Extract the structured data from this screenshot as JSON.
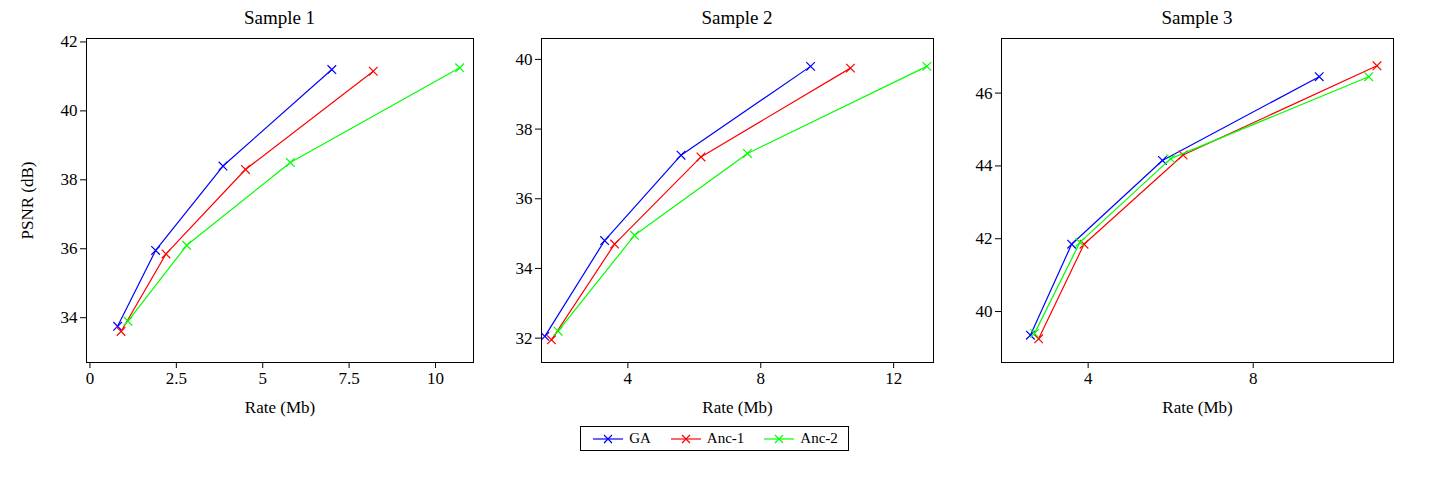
{
  "chart_data": [
    {
      "type": "line",
      "title": "Sample 1",
      "x_label": "Rate (Mb)",
      "y_label": "PSNR (dB)",
      "xlim": [
        -0.1,
        11.1
      ],
      "xticks": [
        0,
        2.5,
        5,
        7.5,
        10
      ],
      "ylim": [
        32.7,
        42.1
      ],
      "yticks": [
        34,
        36,
        38,
        40,
        42
      ],
      "grid": false,
      "legend": "bottom",
      "marker": "x",
      "series": [
        {
          "name": "GA",
          "color": "#0000ff",
          "x": [
            0.8,
            1.9,
            3.85,
            7.0
          ],
          "values": [
            33.75,
            35.95,
            38.4,
            41.2
          ]
        },
        {
          "name": "Anc-1",
          "color": "#ff0000",
          "x": [
            0.9,
            2.2,
            4.5,
            8.2
          ],
          "values": [
            33.6,
            35.85,
            38.3,
            41.15
          ]
        },
        {
          "name": "Anc-2",
          "color": "#00ff00",
          "x": [
            1.1,
            2.8,
            5.8,
            10.7
          ],
          "values": [
            33.9,
            36.1,
            38.5,
            41.25
          ]
        }
      ]
    },
    {
      "type": "line",
      "title": "Sample 2",
      "x_label": "Rate (Mb)",
      "xlim": [
        1.4,
        13.2
      ],
      "xticks": [
        4,
        8,
        12
      ],
      "ylim": [
        31.3,
        40.6
      ],
      "yticks": [
        32,
        34,
        36,
        38,
        40
      ],
      "grid": false,
      "legend": "bottom",
      "marker": "x",
      "series": [
        {
          "name": "GA",
          "color": "#0000ff",
          "x": [
            1.5,
            3.3,
            5.6,
            9.5
          ],
          "values": [
            32.05,
            34.8,
            37.25,
            39.8
          ]
        },
        {
          "name": "Anc-1",
          "color": "#ff0000",
          "x": [
            1.7,
            3.6,
            6.2,
            10.7
          ],
          "values": [
            31.95,
            34.7,
            37.2,
            39.75
          ]
        },
        {
          "name": "Anc-2",
          "color": "#00ff00",
          "x": [
            1.9,
            4.2,
            7.6,
            13.0
          ],
          "values": [
            32.2,
            34.95,
            37.3,
            39.8
          ]
        }
      ]
    },
    {
      "type": "line",
      "title": "Sample 3",
      "x_label": "Rate (Mb)",
      "xlim": [
        1.9,
        11.4
      ],
      "xticks": [
        4,
        8
      ],
      "ylim": [
        38.6,
        47.5
      ],
      "yticks": [
        40,
        42,
        44,
        46
      ],
      "grid": false,
      "legend": "bottom",
      "marker": "x",
      "series": [
        {
          "name": "GA",
          "color": "#0000ff",
          "x": [
            2.6,
            3.6,
            5.8,
            9.6
          ],
          "values": [
            39.35,
            41.85,
            44.15,
            46.45
          ]
        },
        {
          "name": "Anc-1",
          "color": "#ff0000",
          "x": [
            2.8,
            3.9,
            6.3,
            11.0
          ],
          "values": [
            39.25,
            41.85,
            44.3,
            46.75
          ]
        },
        {
          "name": "Anc-2",
          "color": "#00ff00",
          "x": [
            2.7,
            3.8,
            6.0,
            10.8
          ],
          "values": [
            39.4,
            41.9,
            44.2,
            46.45
          ]
        }
      ]
    }
  ]
}
